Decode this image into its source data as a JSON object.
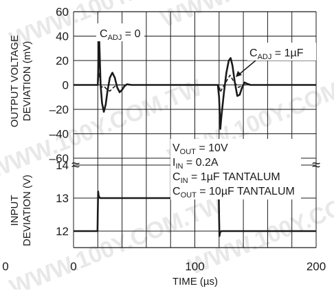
{
  "chart_data": {
    "type": "line",
    "x_axis": {
      "title": "TIME (µs)",
      "range": [
        0,
        200
      ],
      "ticks": [
        0,
        100,
        200
      ],
      "tick_labels": [
        "0",
        "100",
        "200"
      ],
      "grid_step": 20,
      "stray_left_label": "0"
    },
    "top_panel": {
      "y_title_lines": [
        "OUTPUT VOLTAGE",
        "DEVIATION (mV)"
      ],
      "y_range": [
        -60,
        60
      ],
      "y_ticks": [
        60,
        40,
        20,
        0,
        -20,
        -40,
        -60
      ],
      "y_tick_labels": [
        "60",
        "40",
        "20",
        "0",
        "–20",
        "–40",
        "–60"
      ],
      "series": [
        {
          "name": "CADJ = 0",
          "label_main": "C",
          "label_sub": "ADJ",
          "label_tail": " = 0",
          "style": "solid",
          "points": [
            [
              0,
              0
            ],
            [
              20,
              0
            ],
            [
              20.3,
              10
            ],
            [
              21,
              42
            ],
            [
              21.5,
              28
            ],
            [
              22.3,
              0
            ],
            [
              23.5,
              -15
            ],
            [
              25,
              -22
            ],
            [
              26.5,
              -16
            ],
            [
              28,
              -5
            ],
            [
              30,
              6
            ],
            [
              32,
              10
            ],
            [
              34,
              6
            ],
            [
              36,
              -2
            ],
            [
              38,
              -6
            ],
            [
              40,
              -4
            ],
            [
              42,
              -1
            ],
            [
              44,
              0.5
            ],
            [
              48,
              0
            ],
            [
              119,
              0
            ],
            [
              120,
              -10
            ],
            [
              121,
              -36
            ],
            [
              122,
              -25
            ],
            [
              124,
              -6
            ],
            [
              126,
              10
            ],
            [
              128,
              20
            ],
            [
              129.5,
              22
            ],
            [
              131,
              16
            ],
            [
              133,
              2
            ],
            [
              135,
              -9
            ],
            [
              137,
              -8
            ],
            [
              139,
              -2
            ],
            [
              141,
              2
            ],
            [
              143,
              1
            ],
            [
              146,
              0
            ],
            [
              200,
              0
            ]
          ]
        },
        {
          "name": "CADJ = 1µF",
          "label_main": "C",
          "label_sub": "ADJ",
          "label_tail": " = 1µF",
          "style": "dashed",
          "points": [
            [
              0,
              0
            ],
            [
              20,
              0
            ],
            [
              21,
              10
            ],
            [
              22,
              3
            ],
            [
              23,
              -2
            ],
            [
              25,
              -1
            ],
            [
              28,
              -4
            ],
            [
              30,
              -5
            ],
            [
              33,
              -2
            ],
            [
              36,
              0
            ],
            [
              120,
              0
            ],
            [
              121,
              -6
            ],
            [
              123,
              -2
            ],
            [
              126,
              3
            ],
            [
              129,
              8
            ],
            [
              132,
              3
            ],
            [
              136,
              -2
            ],
            [
              140,
              0
            ],
            [
              200,
              0
            ]
          ]
        }
      ]
    },
    "bottom_panel": {
      "y_title_lines": [
        "INPUT",
        "DEVIATION (V)"
      ],
      "y_range": [
        11.5,
        14
      ],
      "y_ticks": [
        14,
        13,
        12
      ],
      "y_tick_labels": [
        "14",
        "13",
        "12"
      ],
      "series": [
        {
          "name": "Input voltage",
          "style": "solid",
          "points": [
            [
              0,
              12
            ],
            [
              19.8,
              12
            ],
            [
              20,
              12.6
            ],
            [
              20.3,
              13.2
            ],
            [
              20.8,
              13.05
            ],
            [
              22,
              13
            ],
            [
              119.8,
              13
            ],
            [
              120,
              12.4
            ],
            [
              120.3,
              11.85
            ],
            [
              120.8,
              11.97
            ],
            [
              122,
              12
            ],
            [
              200,
              12
            ]
          ]
        }
      ]
    },
    "conditions": [
      {
        "main": "V",
        "sub": "OUT",
        "tail": " = 10V"
      },
      {
        "main": "I",
        "sub": "IN",
        "tail": " =  0.2A"
      },
      {
        "main": "C",
        "sub": "IN",
        "tail": " = 1µF TANTALUM"
      },
      {
        "main": "C",
        "sub": "OUT",
        "tail": " = 10µF TANTALUM"
      }
    ],
    "break_symbol": "≈",
    "grid": true,
    "legend": "inline labels"
  },
  "watermarks": [
    "WWW.100Y.COM.TW",
    "WWW.100Y.COM.TW",
    "WWW.100Y.COM.TW",
    "WWW.100Y.COM.TW",
    "WWW.100Y.COM.TW",
    "WWW.100Y.COM.TW"
  ],
  "colors": {
    "line": "#1a1a1a",
    "grid": "#1a1a1a",
    "watermark": "#e6e6e6",
    "background": "#ffffff"
  }
}
